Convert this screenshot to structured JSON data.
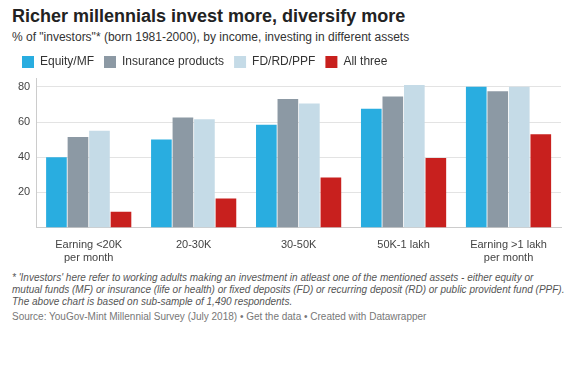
{
  "chart_data": {
    "type": "bar",
    "title": "Richer millennials invest more, diversify more",
    "subtitle": "% of \"investors\"* (born 1981-2000), by income, investing in different assets",
    "categories": [
      "Earning <20K per month",
      "20-30K",
      "30-50K",
      "50K-1 lakh",
      "Earning >1 lakh per month"
    ],
    "series": [
      {
        "name": "Equity/MF",
        "color": "#29ade0",
        "values": [
          40,
          50,
          58.5,
          67.5,
          80
        ]
      },
      {
        "name": "Insurance products",
        "color": "#8c99a4",
        "values": [
          51.5,
          62.5,
          73,
          74.5,
          77.5
        ]
      },
      {
        "name": "FD/RD/PPF",
        "color": "#c5dbe7",
        "values": [
          55,
          61.5,
          70.5,
          81,
          80
        ]
      },
      {
        "name": "All three",
        "color": "#c8201e",
        "values": [
          9,
          16.5,
          28.5,
          39.5,
          53
        ]
      }
    ],
    "ylim": [
      0,
      85
    ],
    "yticks": [
      20,
      40,
      60,
      80
    ],
    "grid": true,
    "legend": "top-left",
    "note": "* 'Investors' here refer to working adults making an investment in atleast one of the mentioned assets - either equity or mutual funds (MF) or insurance (life or health) or fixed deposits (FD) or recurring deposit (RD) or public provident fund (PPF). The above chart is based on sub-sample of 1,490 respondents.",
    "source": "Source: YouGov-Mint Millennial Survey (July 2018) • Get the data • Created with Datawrapper"
  }
}
